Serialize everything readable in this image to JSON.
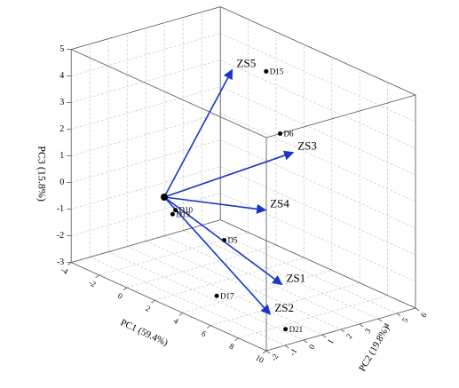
{
  "chart_data": {
    "type": "scatter3d",
    "xlabel": "PC1 (59.4%)",
    "ylabel": "PC2 (19.8%)",
    "zlabel": "PC3 (15.8%)",
    "xlim": [
      -4,
      10
    ],
    "xticks": [
      -4,
      -2,
      0,
      2,
      4,
      6,
      8,
      10
    ],
    "ylim": [
      -2,
      6
    ],
    "yticks": [
      -2,
      -1,
      0,
      1,
      2,
      3,
      4,
      5,
      6
    ],
    "zlim": [
      -3,
      5
    ],
    "zticks": [
      -3,
      -2,
      -1,
      0,
      1,
      2,
      3,
      4,
      5
    ],
    "grid": true,
    "points": {
      "color": "#000000",
      "names": [
        "D15",
        "D6",
        "D5",
        "D17",
        "D21",
        "D10",
        "D19"
      ],
      "x": [
        3.3,
        4.3,
        4.3,
        5.1,
        8.7,
        0.8,
        0.6
      ],
      "y": [
        3,
        3,
        0,
        -1,
        0,
        0,
        0
      ],
      "z": [
        4.9,
        2.8,
        -0.6,
        -2.3,
        -2.9,
        -0.3,
        -0.5
      ]
    },
    "vectors": {
      "color": "#1a35c8",
      "names": [
        "ZS5",
        "ZS3",
        "ZS4",
        "ZS1",
        "ZS2"
      ],
      "x": [
        2.2,
        3.9,
        4.6,
        7.1,
        7.6
      ],
      "y": [
        2,
        4,
        2,
        1,
        0
      ],
      "z": [
        4.9,
        1.8,
        0.2,
        -1.8,
        -2.6
      ]
    }
  }
}
